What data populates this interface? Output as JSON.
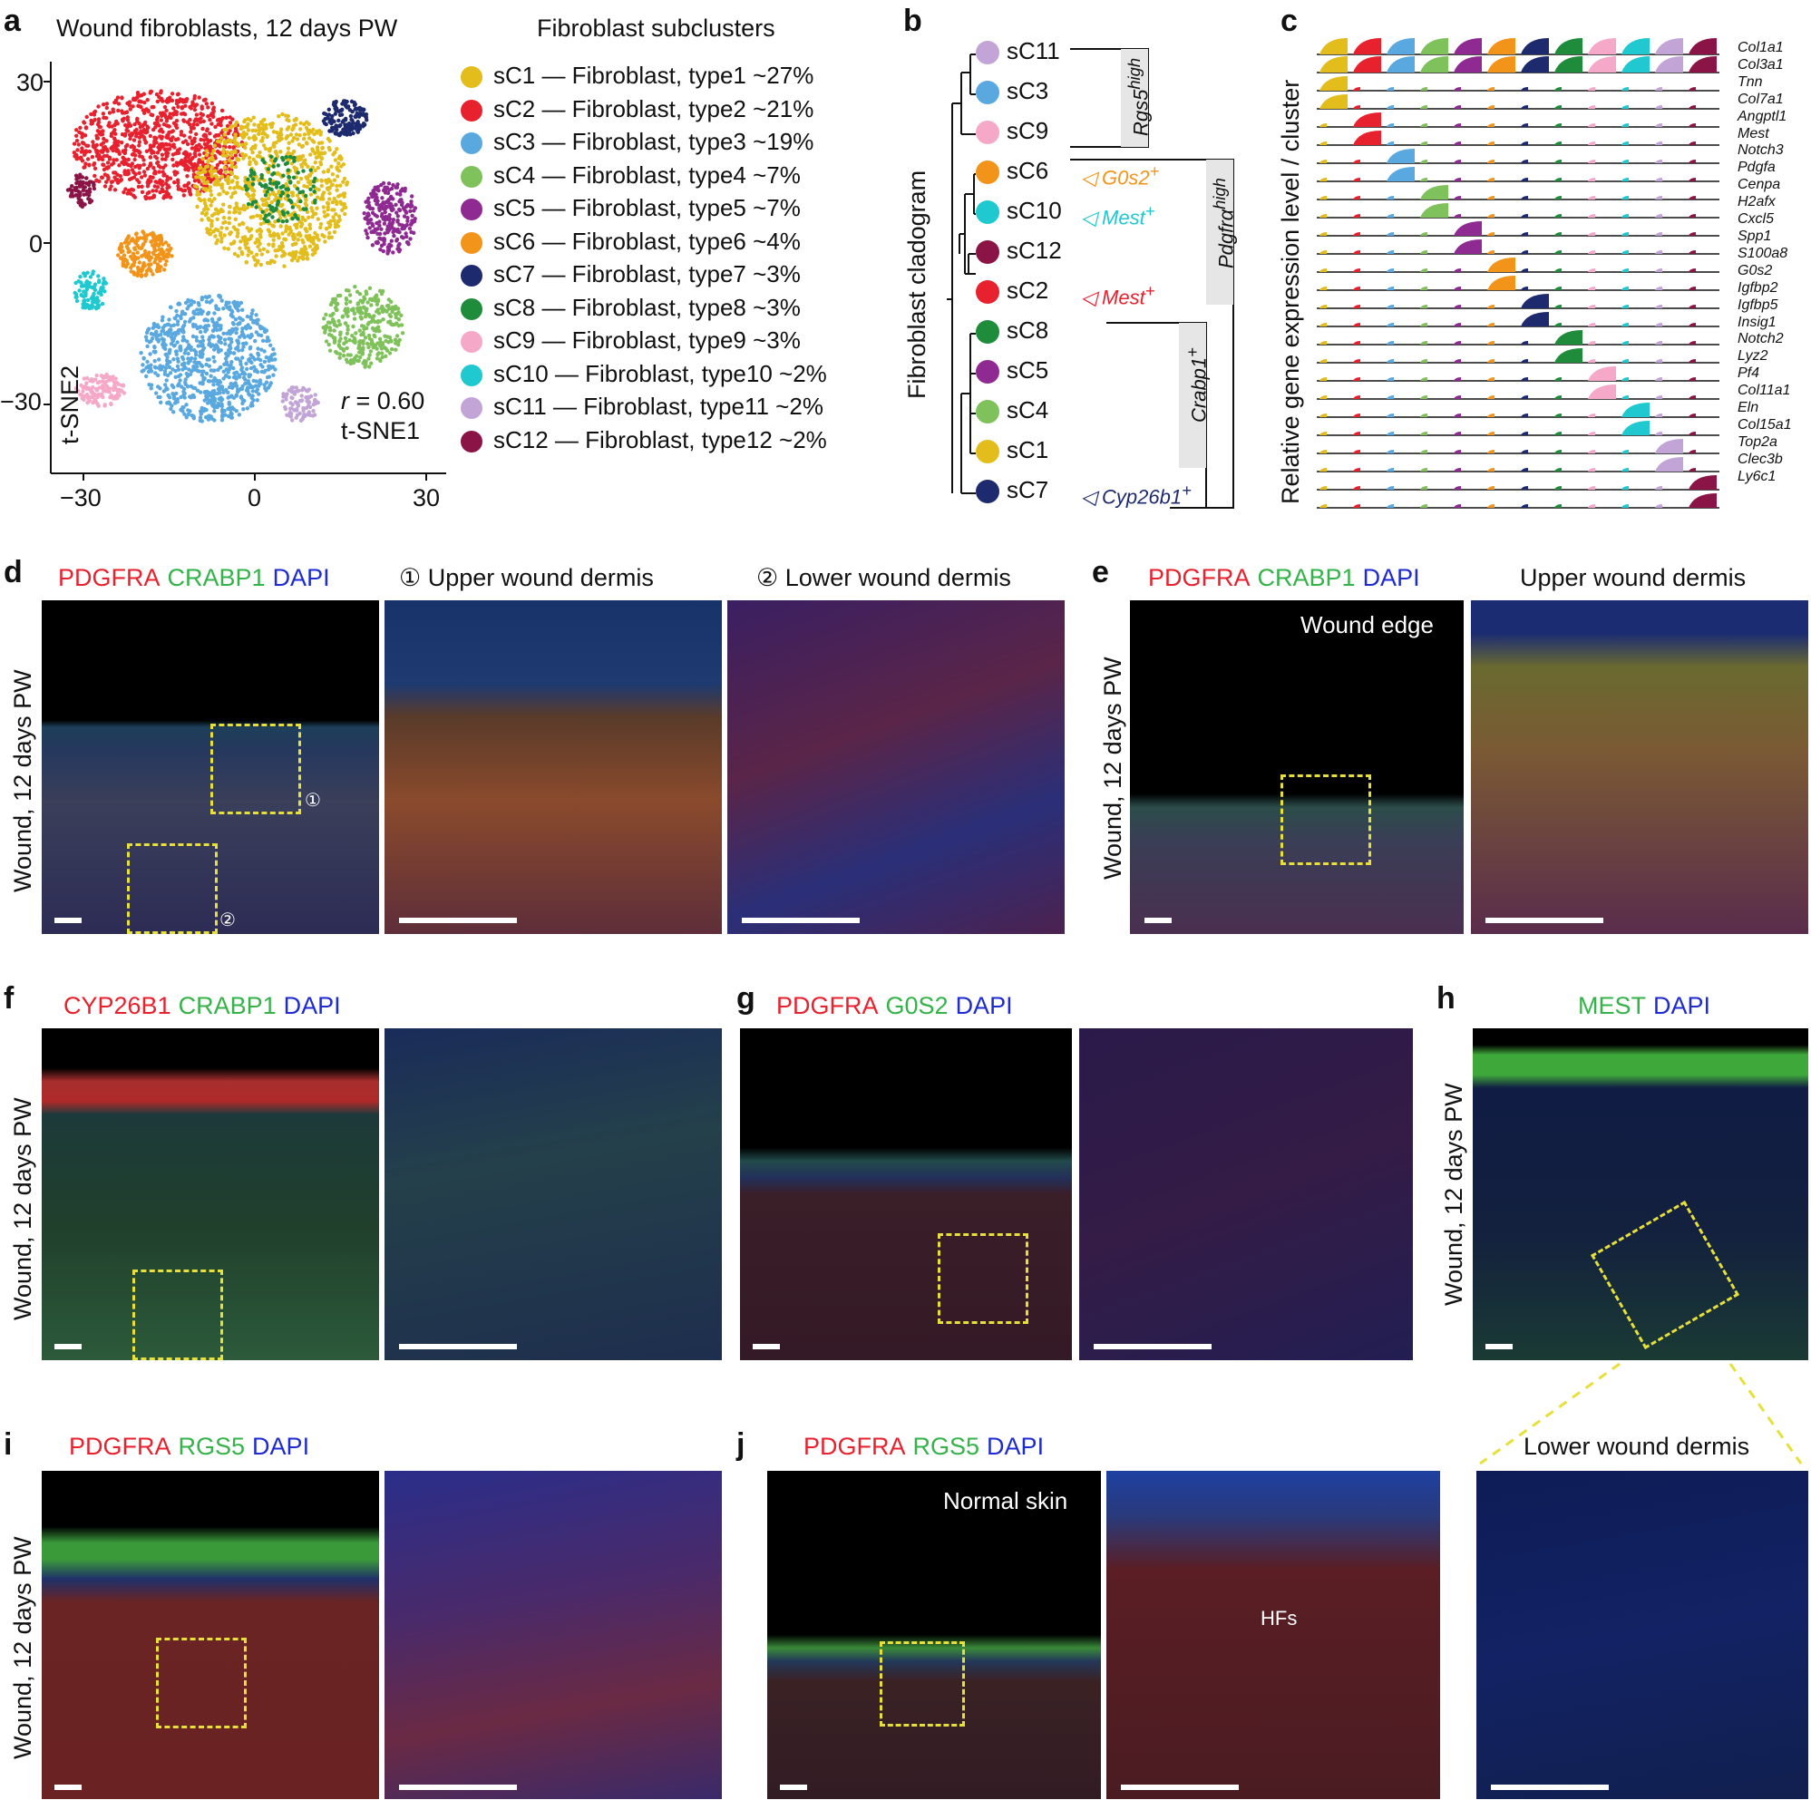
{
  "panel_labels": [
    "a",
    "b",
    "c",
    "d",
    "e",
    "f",
    "g",
    "h",
    "i",
    "j"
  ],
  "colors": {
    "red": "#e8212e",
    "green": "#35b24a",
    "blue": "#1d2bd0",
    "yellow_box": "#e8e03a",
    "white": "#ffffff"
  },
  "panel_a": {
    "title": "Wound fibroblasts, 12 days PW",
    "legend_title": "Fibroblast subclusters",
    "correlation": "r = 0.60",
    "x_axis_label": "t-SNE1",
    "y_axis_label": "t-SNE2",
    "x_ticks": [
      "−30",
      "0",
      "30"
    ],
    "y_ticks": [
      "30",
      "0",
      "−30"
    ],
    "legend": [
      {
        "id": "sC1",
        "text": "sC1 — Fibroblast, type1 ~27%",
        "color": "#e2bd1c"
      },
      {
        "id": "sC2",
        "text": "sC2 — Fibroblast, type2 ~21%",
        "color": "#e8212e"
      },
      {
        "id": "sC3",
        "text": "sC3 — Fibroblast, type3 ~19%",
        "color": "#5aa8e0"
      },
      {
        "id": "sC4",
        "text": "sC4 — Fibroblast, type4 ~7%",
        "color": "#7fc15a"
      },
      {
        "id": "sC5",
        "text": "sC5 — Fibroblast, type5 ~7%",
        "color": "#8e2a92"
      },
      {
        "id": "sC6",
        "text": "sC6 — Fibroblast, type6 ~4%",
        "color": "#f29419"
      },
      {
        "id": "sC7",
        "text": "sC7 — Fibroblast, type7 ~3%",
        "color": "#1d2a6e"
      },
      {
        "id": "sC8",
        "text": "sC8 — Fibroblast, type8 ~3%",
        "color": "#1e8c3a"
      },
      {
        "id": "sC9",
        "text": "sC9 — Fibroblast, type9 ~3%",
        "color": "#f6a8c8"
      },
      {
        "id": "sC10",
        "text": "sC10 — Fibroblast, type10 ~2%",
        "color": "#1fc9cf"
      },
      {
        "id": "sC11",
        "text": "sC11 — Fibroblast, type11 ~2%",
        "color": "#c2a5d6"
      },
      {
        "id": "sC12",
        "text": "sC12  — Fibroblast, type12 ~2%",
        "color": "#8b1446"
      }
    ]
  },
  "panel_b": {
    "axis_label": "Fibroblast cladogram",
    "leaves": [
      {
        "id": "sC11",
        "color": "#c2a5d6"
      },
      {
        "id": "sC3",
        "color": "#5aa8e0"
      },
      {
        "id": "sC9",
        "color": "#f6a8c8"
      },
      {
        "id": "sC6",
        "color": "#f29419"
      },
      {
        "id": "sC10",
        "color": "#1fc9cf"
      },
      {
        "id": "sC12",
        "color": "#8b1446"
      },
      {
        "id": "sC2",
        "color": "#e8212e"
      },
      {
        "id": "sC8",
        "color": "#1e8c3a"
      },
      {
        "id": "sC5",
        "color": "#8e2a92"
      },
      {
        "id": "sC4",
        "color": "#7fc15a"
      },
      {
        "id": "sC1",
        "color": "#e2bd1c"
      },
      {
        "id": "sC7",
        "color": "#1d2a6e"
      }
    ],
    "group_labels": [
      "Rgs5high",
      "Pdgfrαhigh",
      "Crabp1+"
    ],
    "markers": [
      {
        "text": "G0s2+",
        "color": "#f29419"
      },
      {
        "text": "Mest+",
        "color": "#1fc9cf"
      },
      {
        "text": "Mest+",
        "color": "#e8212e"
      },
      {
        "text": "Cyp26b1+",
        "color": "#1d2a6e"
      }
    ]
  },
  "panel_c": {
    "axis_label": "Relative gene expression level / cluster",
    "genes": [
      "Col1a1",
      "Col3a1",
      "Tnn",
      "Col7a1",
      "Angptl1",
      "Mest",
      "Notch3",
      "Pdgfa",
      "Cenpa",
      "H2afx",
      "Cxcl5",
      "Spp1",
      "S100a8",
      "G0s2",
      "Igfbp2",
      "Igfbp5",
      "Insig1",
      "Notch2",
      "Lyz2",
      "Pf4",
      "Col11a1",
      "Eln",
      "Col15a1",
      "Top2a",
      "Clec3b",
      "Ly6c1"
    ],
    "cluster_order_colors": [
      "#e2bd1c",
      "#e8212e",
      "#5aa8e0",
      "#7fc15a",
      "#8e2a92",
      "#f29419",
      "#1d2a6e",
      "#1e8c3a",
      "#f6a8c8",
      "#1fc9cf",
      "#c2a5d6",
      "#8b1446"
    ]
  },
  "panel_d": {
    "stain": [
      "PDGFRA",
      "CRABP1",
      "DAPI"
    ],
    "row_label": "Wound, 12 days PW",
    "sub1": "① Upper wound dermis",
    "sub2": "② Lower wound dermis",
    "marks": [
      "①",
      "②"
    ]
  },
  "panel_e": {
    "stain": [
      "PDGFRA",
      "CRABP1",
      "DAPI"
    ],
    "row_label": "Wound, 12 days PW",
    "inset_text": "Wound edge",
    "sub": "Upper wound dermis"
  },
  "panel_f": {
    "stain": [
      "CYP26B1",
      "CRABP1",
      "DAPI"
    ],
    "row_label": "Wound, 12 days PW"
  },
  "panel_g": {
    "stain": [
      "PDGFRA",
      "G0S2",
      "DAPI"
    ]
  },
  "panel_h": {
    "stain": [
      "MEST",
      "DAPI"
    ],
    "row_label": "Wound, 12 days PW",
    "sub": "Lower wound dermis"
  },
  "panel_i": {
    "stain": [
      "PDGFRA",
      "RGS5",
      "DAPI"
    ],
    "row_label": "Wound, 12 days PW"
  },
  "panel_j": {
    "stain": [
      "PDGFRA",
      "RGS5",
      "DAPI"
    ],
    "inset_text": "Normal skin",
    "hf_label": "HFs"
  }
}
